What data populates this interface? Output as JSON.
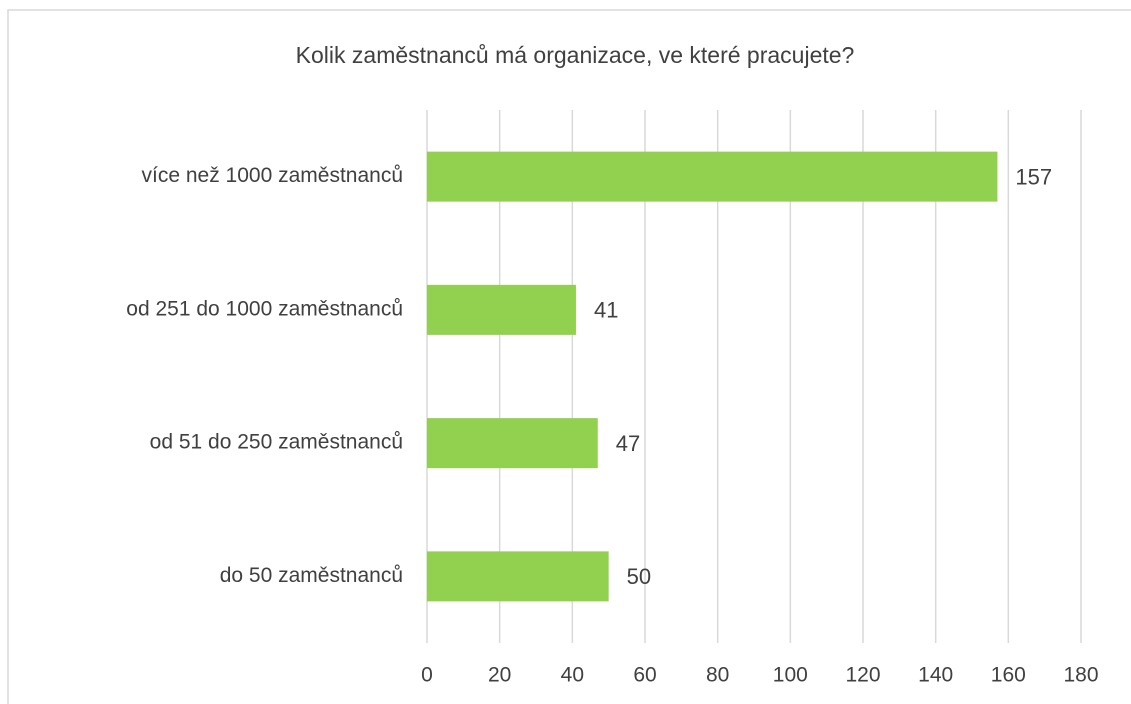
{
  "chart_data": {
    "type": "barh",
    "title": "Kolik zaměstnanců má organizace, ve které pracujete?",
    "categories": [
      "více než 1000 zaměstnanců",
      "od 251 do 1000 zaměstnanců",
      "od 51 do 250 zaměstnanců",
      "do 50 zaměstnanců"
    ],
    "values": [
      157,
      41,
      47,
      50
    ],
    "color": "#92d050",
    "xlim": [
      0,
      180
    ],
    "xticks": [
      0,
      20,
      40,
      60,
      80,
      100,
      120,
      140,
      160,
      180
    ],
    "grid": true
  }
}
